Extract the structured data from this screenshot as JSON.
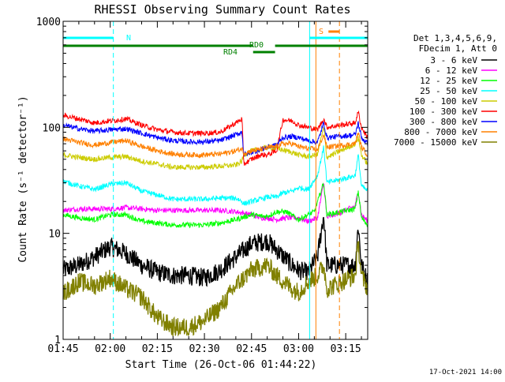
{
  "chart_data": {
    "type": "line",
    "title": "RHESSI Observing Summary Count Rates",
    "xlabel": "Start Time (26-Oct-06 01:44:22)",
    "ylabel": "Count Rate (s⁻¹ detector⁻¹)",
    "yscale": "log",
    "ylim": [
      1,
      1000
    ],
    "x_range_min": [
      105,
      202
    ],
    "x_ticks": [
      {
        "min": 105,
        "label": "01:45"
      },
      {
        "min": 120,
        "label": "02:00"
      },
      {
        "min": 135,
        "label": "02:15"
      },
      {
        "min": 150,
        "label": "02:30"
      },
      {
        "min": 165,
        "label": "02:45"
      },
      {
        "min": 180,
        "label": "03:00"
      },
      {
        "min": 195,
        "label": "03:15"
      }
    ],
    "y_ticks": [
      {
        "value": 1,
        "label": "1"
      },
      {
        "value": 10,
        "label": "10"
      },
      {
        "value": 100,
        "label": "100"
      },
      {
        "value": 1000,
        "label": "1000"
      }
    ],
    "legend": {
      "placement": "right",
      "header": [
        "Det 1,3,4,5,6,9,",
        "FDecim 1, Att 0"
      ]
    },
    "series": [
      {
        "name": "3 - 6 keV",
        "color": "#000000",
        "points": [
          [
            105,
            4.5
          ],
          [
            110,
            5
          ],
          [
            115,
            6
          ],
          [
            120,
            7.5
          ],
          [
            125,
            6.5
          ],
          [
            130,
            5
          ],
          [
            135,
            4.3
          ],
          [
            140,
            4
          ],
          [
            145,
            4
          ],
          [
            150,
            3.8
          ],
          [
            155,
            4.5
          ],
          [
            160,
            6
          ],
          [
            165,
            8
          ],
          [
            170,
            8.5
          ],
          [
            173,
            7
          ],
          [
            178,
            5
          ],
          [
            180,
            4.5
          ],
          [
            183,
            4.2
          ],
          [
            186,
            6
          ],
          [
            188,
            15
          ],
          [
            189,
            5
          ],
          [
            198,
            5
          ],
          [
            199,
            12
          ],
          [
            200,
            5
          ],
          [
            202,
            3.5
          ]
        ]
      },
      {
        "name": "6 - 12 keV",
        "color": "#ff00ff",
        "points": [
          [
            105,
            16.5
          ],
          [
            110,
            17
          ],
          [
            120,
            17
          ],
          [
            125,
            17.5
          ],
          [
            130,
            17
          ],
          [
            135,
            16.5
          ],
          [
            145,
            16.5
          ],
          [
            155,
            16.5
          ],
          [
            160,
            16
          ],
          [
            165,
            15
          ],
          [
            168,
            14
          ],
          [
            170,
            14
          ],
          [
            173,
            13.5
          ],
          [
            176,
            14
          ],
          [
            180,
            14
          ],
          [
            183,
            13
          ],
          [
            186,
            14
          ],
          [
            188,
            30
          ],
          [
            189,
            14
          ],
          [
            198,
            18
          ],
          [
            199,
            25
          ],
          [
            200,
            15
          ],
          [
            202,
            13
          ]
        ]
      },
      {
        "name": "12 - 25 keV",
        "color": "#00ff00",
        "points": [
          [
            105,
            15
          ],
          [
            110,
            14
          ],
          [
            115,
            13.5
          ],
          [
            120,
            15
          ],
          [
            125,
            15
          ],
          [
            130,
            13
          ],
          [
            135,
            12.5
          ],
          [
            140,
            12
          ],
          [
            145,
            12
          ],
          [
            150,
            12
          ],
          [
            155,
            12.5
          ],
          [
            160,
            13.5
          ],
          [
            165,
            15
          ],
          [
            168,
            14.5
          ],
          [
            170,
            14.5
          ],
          [
            173,
            16
          ],
          [
            176,
            16
          ],
          [
            180,
            13.5
          ],
          [
            185,
            16
          ],
          [
            188,
            30
          ],
          [
            189,
            15
          ],
          [
            198,
            17
          ],
          [
            199,
            25
          ],
          [
            200,
            14
          ],
          [
            202,
            12
          ]
        ]
      },
      {
        "name": "25 - 50 keV",
        "color": "#00ffff",
        "points": [
          [
            105,
            31
          ],
          [
            110,
            28
          ],
          [
            115,
            26
          ],
          [
            120,
            29
          ],
          [
            125,
            30
          ],
          [
            130,
            25
          ],
          [
            135,
            23
          ],
          [
            140,
            21
          ],
          [
            145,
            21
          ],
          [
            150,
            21
          ],
          [
            155,
            21.5
          ],
          [
            160,
            21.5
          ],
          [
            162,
            20
          ],
          [
            162.5,
            19
          ],
          [
            165,
            20
          ],
          [
            168,
            21
          ],
          [
            170,
            22
          ],
          [
            173,
            22
          ],
          [
            175,
            24
          ],
          [
            178,
            25
          ],
          [
            180,
            27
          ],
          [
            183,
            26
          ],
          [
            186,
            35
          ],
          [
            188,
            65
          ],
          [
            189,
            30
          ],
          [
            198,
            35
          ],
          [
            199,
            55
          ],
          [
            200,
            28
          ],
          [
            202,
            25
          ]
        ]
      },
      {
        "name": "50 - 100 keV",
        "color": "#cccc00",
        "points": [
          [
            105,
            55
          ],
          [
            110,
            52
          ],
          [
            115,
            50
          ],
          [
            120,
            52
          ],
          [
            125,
            53
          ],
          [
            130,
            48
          ],
          [
            135,
            45
          ],
          [
            140,
            42
          ],
          [
            145,
            42
          ],
          [
            150,
            42
          ],
          [
            155,
            43
          ],
          [
            160,
            44
          ],
          [
            162,
            48
          ],
          [
            162.5,
            55
          ],
          [
            165,
            60
          ],
          [
            168,
            62
          ],
          [
            170,
            65
          ],
          [
            173,
            63
          ],
          [
            176,
            60
          ],
          [
            178,
            58
          ],
          [
            180,
            55
          ],
          [
            183,
            53
          ],
          [
            186,
            55
          ],
          [
            188,
            100
          ],
          [
            189,
            52
          ],
          [
            198,
            70
          ],
          [
            199,
            80
          ],
          [
            200,
            55
          ],
          [
            202,
            45
          ]
        ]
      },
      {
        "name": "100 - 300 keV",
        "color": "#ff0000",
        "points": [
          [
            105,
            130
          ],
          [
            110,
            120
          ],
          [
            115,
            110
          ],
          [
            120,
            115
          ],
          [
            125,
            120
          ],
          [
            130,
            105
          ],
          [
            135,
            95
          ],
          [
            140,
            90
          ],
          [
            145,
            88
          ],
          [
            150,
            88
          ],
          [
            155,
            90
          ],
          [
            160,
            110
          ],
          [
            162,
            120
          ],
          [
            162.5,
            45
          ],
          [
            165,
            50
          ],
          [
            168,
            55
          ],
          [
            170,
            55
          ],
          [
            173,
            60
          ],
          [
            175,
            118
          ],
          [
            178,
            115
          ],
          [
            180,
            105
          ],
          [
            183,
            100
          ],
          [
            186,
            95
          ],
          [
            188,
            120
          ],
          [
            189,
            100
          ],
          [
            198,
            110
          ],
          [
            199,
            140
          ],
          [
            200,
            100
          ],
          [
            202,
            80
          ]
        ]
      },
      {
        "name": "300 - 800 keV",
        "color": "#0000ff",
        "points": [
          [
            105,
            105
          ],
          [
            110,
            97
          ],
          [
            115,
            92
          ],
          [
            120,
            95
          ],
          [
            125,
            97
          ],
          [
            130,
            88
          ],
          [
            135,
            80
          ],
          [
            140,
            75
          ],
          [
            145,
            73
          ],
          [
            150,
            73
          ],
          [
            155,
            75
          ],
          [
            160,
            85
          ],
          [
            162,
            90
          ],
          [
            162.5,
            55
          ],
          [
            165,
            58
          ],
          [
            168,
            62
          ],
          [
            170,
            65
          ],
          [
            173,
            68
          ],
          [
            175,
            80
          ],
          [
            178,
            82
          ],
          [
            180,
            80
          ],
          [
            183,
            75
          ],
          [
            186,
            72
          ],
          [
            188,
            110
          ],
          [
            189,
            80
          ],
          [
            198,
            85
          ],
          [
            199,
            110
          ],
          [
            200,
            80
          ],
          [
            202,
            70
          ]
        ]
      },
      {
        "name": "800 - 7000 keV",
        "color": "#ff8000",
        "points": [
          [
            105,
            78
          ],
          [
            110,
            72
          ],
          [
            115,
            68
          ],
          [
            120,
            72
          ],
          [
            125,
            75
          ],
          [
            130,
            66
          ],
          [
            135,
            60
          ],
          [
            140,
            56
          ],
          [
            145,
            55
          ],
          [
            150,
            55
          ],
          [
            155,
            56
          ],
          [
            160,
            60
          ],
          [
            162,
            63
          ],
          [
            162.5,
            57
          ],
          [
            165,
            60
          ],
          [
            168,
            62
          ],
          [
            170,
            64
          ],
          [
            173,
            66
          ],
          [
            175,
            70
          ],
          [
            178,
            70
          ],
          [
            180,
            66
          ],
          [
            183,
            63
          ],
          [
            186,
            62
          ],
          [
            188,
            85
          ],
          [
            189,
            65
          ],
          [
            198,
            70
          ],
          [
            199,
            90
          ],
          [
            200,
            65
          ],
          [
            202,
            55
          ]
        ]
      },
      {
        "name": "7000 - 15000 keV",
        "color": "#808000",
        "points": [
          [
            105,
            2.7
          ],
          [
            110,
            3.5
          ],
          [
            115,
            3.2
          ],
          [
            120,
            3.8
          ],
          [
            125,
            3
          ],
          [
            130,
            2.5
          ],
          [
            135,
            1.6
          ],
          [
            140,
            1.3
          ],
          [
            145,
            1.3
          ],
          [
            150,
            1.5
          ],
          [
            155,
            2
          ],
          [
            160,
            3.2
          ],
          [
            165,
            4.5
          ],
          [
            170,
            5
          ],
          [
            173,
            4
          ],
          [
            178,
            3
          ],
          [
            180,
            2.8
          ],
          [
            183,
            3.5
          ],
          [
            186,
            4
          ],
          [
            188,
            5
          ],
          [
            189,
            3
          ],
          [
            198,
            4
          ],
          [
            199,
            8
          ],
          [
            200,
            4
          ],
          [
            202,
            3
          ]
        ]
      }
    ],
    "attenuator_times_min": [
      185.5,
      188.5
    ],
    "attenuator_color": "#ff8000",
    "annotations": [
      {
        "text": "N",
        "color": "#00ffff"
      },
      {
        "text": "S",
        "color": "#ff8000"
      },
      {
        "text": "RD0",
        "color": "#008000"
      },
      {
        "text": "RD4",
        "color": "#008000"
      }
    ],
    "night_segments_min": [
      [
        105,
        121
      ],
      [
        183.5,
        202
      ]
    ],
    "night_boundary_lines_min": [
      105,
      121,
      183.5,
      202
    ],
    "saa_segment_min": [
      189.5,
      193
    ],
    "saa_boundary_line_min": 193,
    "rd0_segments_min": [
      [
        105,
        165.5
      ],
      [
        172.5,
        202
      ]
    ],
    "rd4_segment_min": [
      165.5,
      172.5
    ],
    "timestamp": "17-Oct-2021 14:00"
  }
}
